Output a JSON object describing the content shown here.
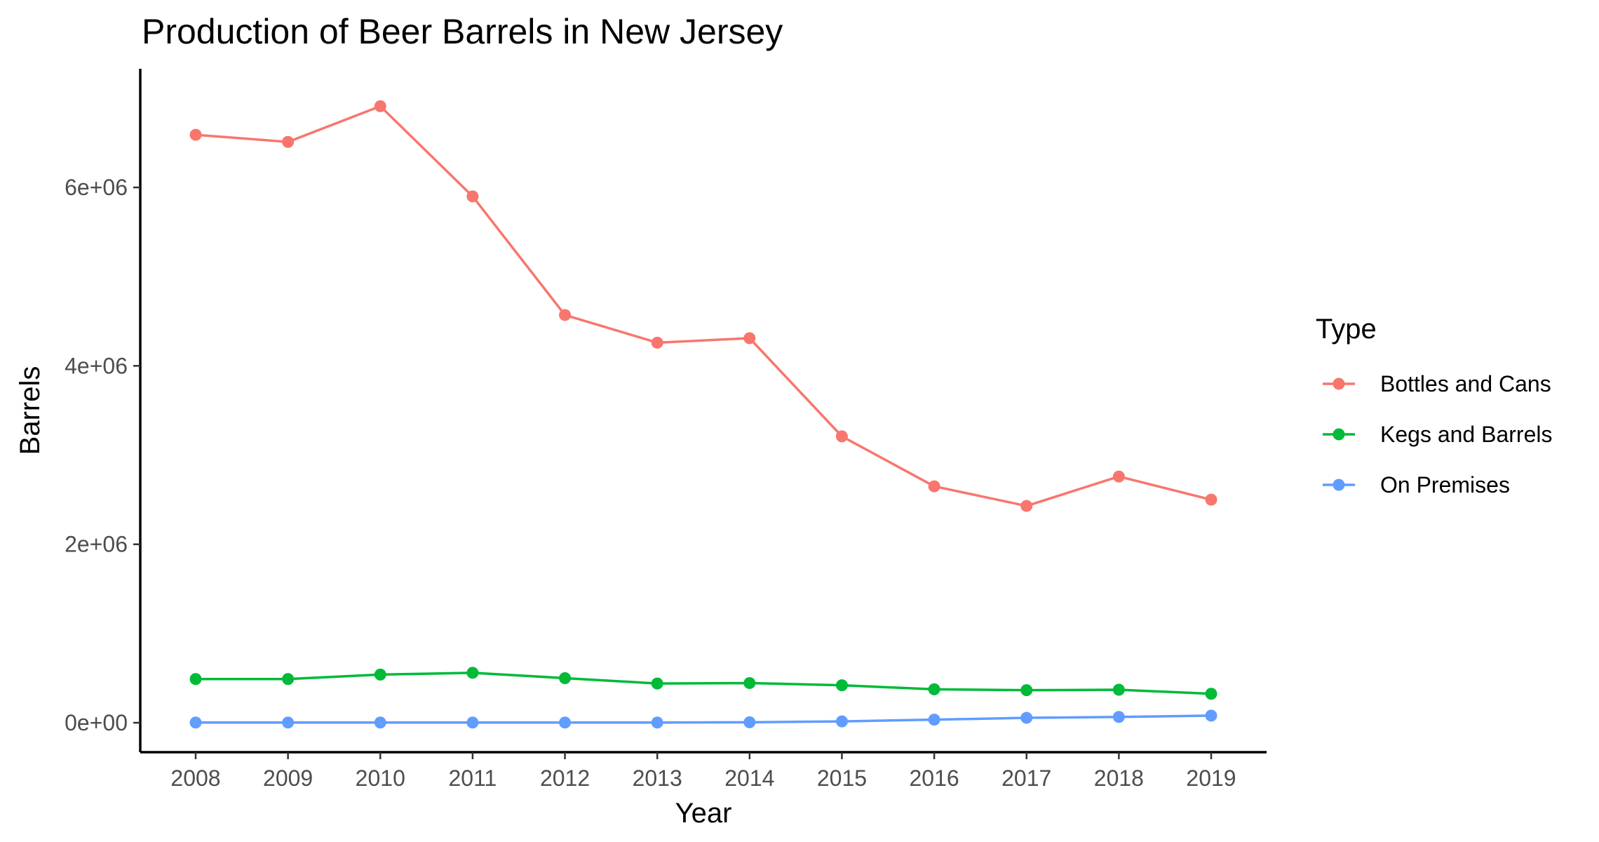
{
  "chart_data": {
    "type": "line",
    "title": "Production of Beer Barrels in New Jersey",
    "xlabel": "Year",
    "ylabel": "Barrels",
    "categories": [
      "2008",
      "2009",
      "2010",
      "2011",
      "2012",
      "2013",
      "2014",
      "2015",
      "2016",
      "2017",
      "2018",
      "2019"
    ],
    "yticks": [
      0,
      2000000,
      4000000,
      6000000
    ],
    "ytick_labels": [
      "0e+00",
      "2e+06",
      "4e+06",
      "6e+06"
    ],
    "ylim": [
      -330000,
      7330000
    ],
    "grid": false,
    "legend": {
      "title": "Type",
      "placement": "right"
    },
    "series": [
      {
        "name": "Bottles and Cans",
        "color": "#F8766D",
        "values": [
          6590000,
          6510000,
          6910000,
          5900000,
          4570000,
          4260000,
          4310000,
          3210000,
          2650000,
          2430000,
          2760000,
          2500000
        ]
      },
      {
        "name": "Kegs and Barrels",
        "color": "#00BA38",
        "values": [
          490000,
          490000,
          540000,
          560000,
          500000,
          440000,
          445000,
          420000,
          375000,
          365000,
          370000,
          325000
        ]
      },
      {
        "name": "On Premises",
        "color": "#619CFF",
        "values": [
          2000,
          2000,
          2000,
          2000,
          2000,
          2000,
          5000,
          15000,
          35000,
          55000,
          65000,
          80000
        ]
      }
    ]
  }
}
